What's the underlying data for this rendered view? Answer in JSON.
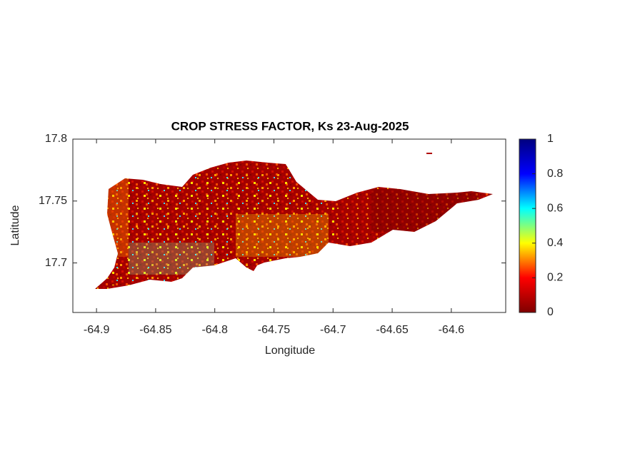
{
  "chart_data": {
    "type": "map",
    "title": "CROP STRESS FACTOR, Ks  23-Aug-2025",
    "x_label": "Longitude",
    "y_label": "Latitude",
    "xlim": [
      -64.92,
      -64.554
    ],
    "xticks": [
      -64.9,
      -64.85,
      -64.8,
      -64.75,
      -64.7,
      -64.65,
      -64.6
    ],
    "ylim": [
      17.66,
      17.8
    ],
    "yticks": [
      17.7,
      17.75,
      17.8
    ],
    "colorbar": {
      "lim": [
        0,
        1
      ],
      "ticks": [
        0,
        0.2,
        0.4,
        0.6,
        0.8,
        1
      ],
      "colormap": [
        "#7f0000",
        "#ff0000",
        "#ffff00",
        "#00ffff",
        "#0000ff",
        "#00007f"
      ]
    }
  }
}
